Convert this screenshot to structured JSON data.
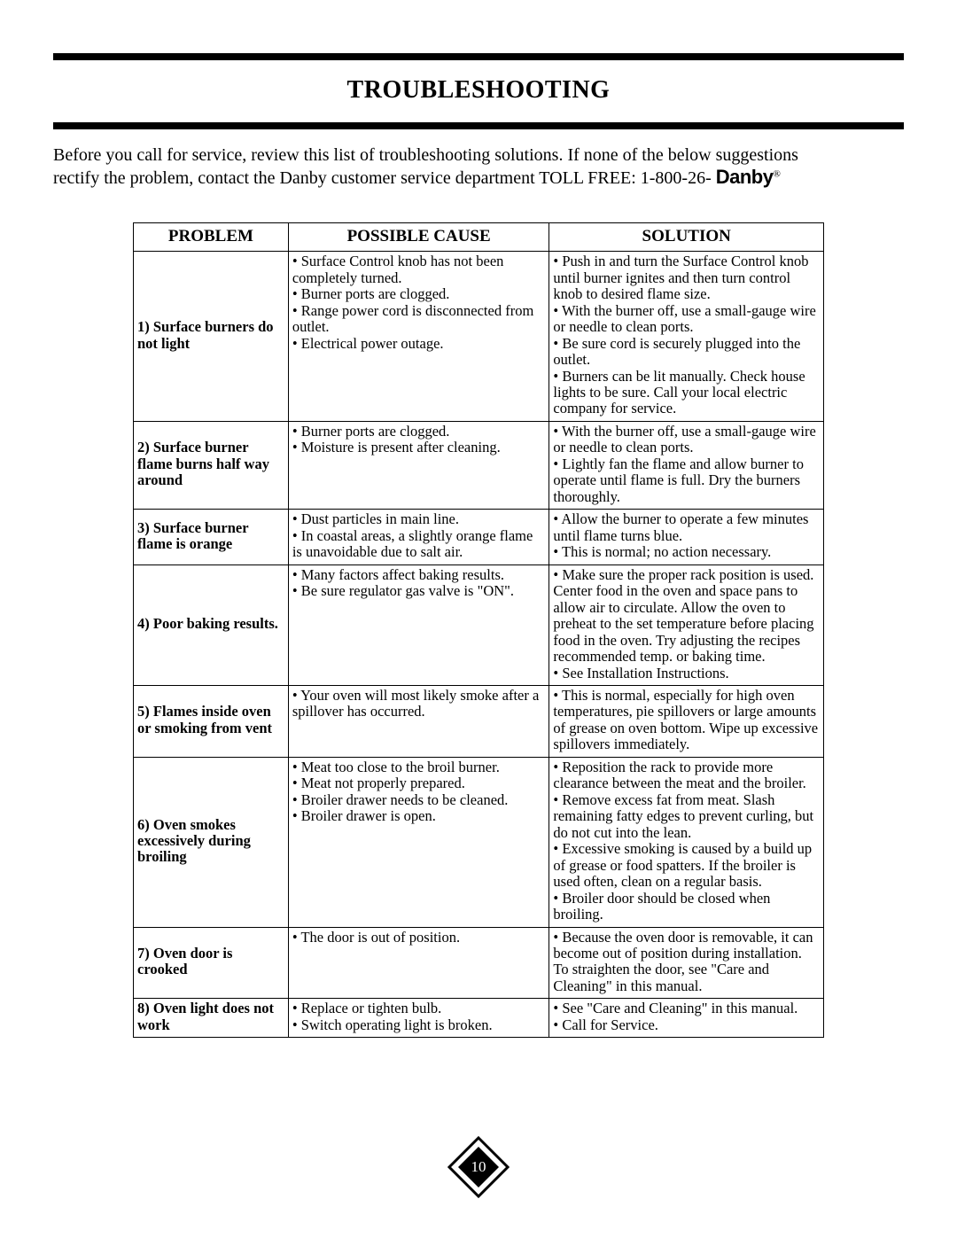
{
  "title": "TROUBLESHOOTING",
  "intro_line1": "Before you call for service, review this list of troubleshooting solutions. If none of the below suggestions",
  "intro_line2": "rectify the problem, contact the Danby customer service department TOLL FREE: 1-800-26- ",
  "brand": "Danby",
  "reg": "®",
  "table": {
    "headers": {
      "problem": "PROBLEM",
      "cause": "POSSIBLE CAUSE",
      "solution": "SOLUTION"
    },
    "rows": [
      {
        "problem": "1) Surface burners do not light",
        "cause": "• Surface Control knob has not been completely turned.\n• Burner ports are clogged.\n• Range power cord is disconnected from outlet.\n• Electrical power outage.",
        "solution": "• Push in and turn the Surface Control knob until burner ignites and then turn control knob to desired flame size.\n• With the burner off, use a small-gauge wire or needle to clean ports.\n• Be sure cord is securely plugged into the outlet.\n• Burners can be lit manually. Check house lights to be sure. Call your local electric company for service."
      },
      {
        "problem": "2) Surface burner flame burns half way around",
        "cause": "• Burner ports are clogged.\n• Moisture is present after cleaning.",
        "solution": "• With the burner off, use a small-gauge wire or needle to clean ports.\n• Lightly fan the flame and allow burner to operate until flame is full. Dry the burners thoroughly."
      },
      {
        "problem": "3) Surface burner flame is orange",
        "cause": "• Dust particles in main line.\n• In coastal areas, a slightly orange flame is unavoidable due to salt air.",
        "solution": "• Allow the burner to operate a few minutes until flame turns blue.\n• This is normal; no action necessary."
      },
      {
        "problem": "4) Poor baking results.",
        "cause": "• Many factors affect baking results.\n• Be sure regulator gas valve is \"ON\".",
        "solution": "• Make sure the proper rack position is used. Center food in the oven and space pans to allow air to circulate. Allow the oven to preheat to the set temperature before placing food in the oven. Try adjusting the recipes recommended temp. or baking time.\n• See Installation Instructions."
      },
      {
        "problem": "5) Flames inside oven or smoking from vent",
        "cause": "• Your oven will most likely smoke after a spillover has occurred.",
        "solution": "• This is normal, especially for high oven temperatures, pie spillovers or large amounts of grease on oven bottom. Wipe up excessive spillovers immediately."
      },
      {
        "problem": "6) Oven smokes excessively during broiling",
        "cause": "• Meat too close to the broil burner.\n• Meat not properly prepared.\n• Broiler drawer needs to be cleaned.\n• Broiler drawer is open.",
        "solution": "• Reposition the rack to provide more clearance between the meat and the broiler.\n• Remove excess fat from meat. Slash remaining fatty edges to prevent curling, but do not cut into the lean.\n• Excessive smoking is caused by a build up of grease or food spatters. If the broiler is used often, clean on a regular basis.\n• Broiler door should be closed when broiling."
      },
      {
        "problem": "7) Oven door is crooked",
        "cause": "• The door is out of position.",
        "solution": "• Because the oven door is removable, it can become out of position during installation. To straighten the door, see \"Care and Cleaning\" in this manual."
      },
      {
        "problem": "8) Oven light does not work",
        "cause": "• Replace or tighten bulb.\n• Switch operating light is broken.",
        "solution": "• See \"Care and Cleaning\" in this manual.\n• Call for Service."
      }
    ]
  },
  "page_number": "10",
  "colors": {
    "rule": "#000000",
    "text": "#000000",
    "background": "#ffffff",
    "footer_diamond_fill": "#000000"
  }
}
